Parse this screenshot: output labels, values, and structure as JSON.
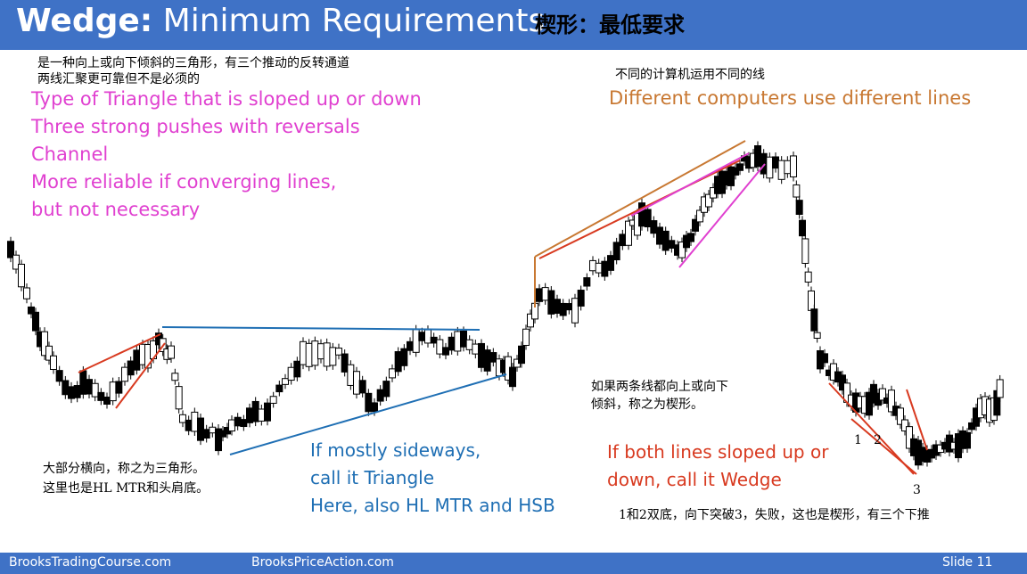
{
  "header": {
    "title_bold": "Wedge:",
    "title_rest": " Minimum Requirements",
    "title_cn": "楔形：最低要求"
  },
  "notes": {
    "top_left_cn_1": "是一种向上或向下倾斜的三角形，有三个推动的反转通道",
    "top_left_cn_2": "两线汇聚更可靠但不是必须的",
    "requirements": [
      "Type of Triangle that is sloped up or down",
      "Three strong pushes with reversals",
      "Channel",
      "More reliable if converging lines,",
      "but not necessary"
    ],
    "top_right_cn": "不同的计算机运用不同的线",
    "top_right_en": "Different computers use different lines",
    "bottom_left_cn_1": "大部分横向，称之为三角形。",
    "bottom_left_cn_2": "这里也是HL MTR和头肩底。",
    "triangle_lines": [
      "If mostly sideways,",
      "call it Triangle",
      "Here, also HL MTR and HSB"
    ],
    "mid_right_cn_1": "如果两条线都向上或向下",
    "mid_right_cn_2": "倾斜，称之为楔形。",
    "wedge_lines": [
      "If both lines sloped up or",
      "down, call it Wedge"
    ],
    "bottom_right_cn": "1和2双底，向下突破3，失败，这也是楔形，有三个下推",
    "push_labels": [
      "1",
      "2",
      "3"
    ]
  },
  "footer": {
    "left": "BrooksTradingCourse.com",
    "center": "BrooksPriceAction.com",
    "slide": "Slide  11"
  },
  "colors": {
    "header_bg": "#3f72c6",
    "magenta": "#e040d0",
    "orange": "#c87832",
    "blue": "#1f6fb4",
    "red": "#d83a20"
  }
}
